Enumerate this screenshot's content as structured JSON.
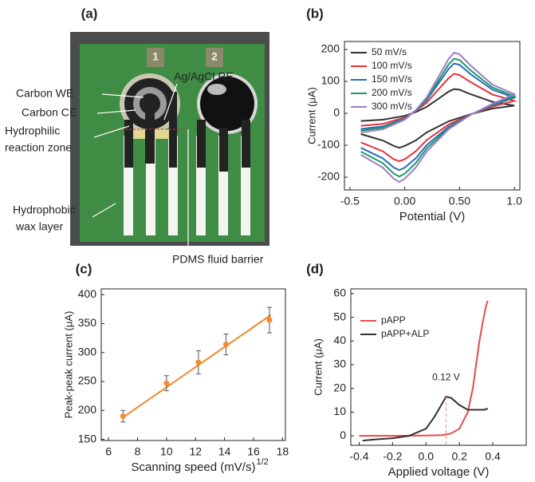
{
  "photo": {
    "panel_label": "(a)",
    "pad_numbers": [
      "1",
      "2"
    ],
    "labels": [
      "Carbon WE",
      "Carbon CE",
      "Ag/AgCl RE",
      "Hydrophilic",
      "reaction zone",
      "Hydrophobic",
      "wax layer",
      "PDMS fluid barrier"
    ]
  },
  "chart_data": [
    {
      "type": "line",
      "panel_label": "(b)",
      "xlabel": "Potential (V)",
      "ylabel": "Current (μA)",
      "x": [
        -0.4,
        -0.2,
        0,
        0.1,
        0.2,
        0.3,
        0.4,
        0.45,
        0.5,
        0.6,
        0.8,
        1.0,
        0.8,
        0.6,
        0.4,
        0.2,
        0.1,
        0,
        -0.05,
        -0.1,
        -0.2,
        -0.4
      ],
      "series": [
        {
          "name": "50 mV/s",
          "color": "#333333",
          "values": [
            -24,
            -20,
            -8,
            4,
            20,
            44,
            68,
            76,
            74,
            60,
            36,
            24,
            15,
            -3,
            -25,
            -60,
            -85,
            -102,
            -108,
            -102,
            -85,
            -65
          ]
        },
        {
          "name": "100 mV/s",
          "color": "#e8323c",
          "values": [
            -39,
            -33,
            -13,
            7,
            33,
            72,
            110,
            124,
            120,
            98,
            59,
            39,
            21,
            -4,
            -35,
            -84,
            -119,
            -144,
            -150,
            -144,
            -119,
            -91
          ]
        },
        {
          "name": "150 mV/s",
          "color": "#2a6db5",
          "values": [
            -49,
            -41,
            -16,
            8,
            41,
            90,
            139,
            156,
            152,
            123,
            74,
            49,
            25,
            -4,
            -42,
            -100,
            -141,
            -170,
            -178,
            -170,
            -141,
            -108
          ]
        },
        {
          "name": "200 mV/s",
          "color": "#1a9a6a",
          "values": [
            -54,
            -45,
            -18,
            9,
            45,
            99,
            153,
            171,
            167,
            135,
            81,
            54,
            28,
            -5,
            -46,
            -110,
            -156,
            -189,
            -198,
            -189,
            -156,
            -120
          ]
        },
        {
          "name": "300 mV/s",
          "color": "#a07cc8",
          "values": [
            -60,
            -50,
            -20,
            10,
            50,
            110,
            170,
            190,
            185,
            150,
            90,
            60,
            30,
            -5,
            -50,
            -120,
            -170,
            -205,
            -215,
            -205,
            -170,
            -130
          ]
        }
      ],
      "xlim": [
        -0.55,
        1.05
      ],
      "ylim": [
        -240,
        225
      ],
      "xticks": [
        -0.5,
        {
          "value": 0,
          "label": "0.00"
        },
        {
          "value": 0.5,
          "label": "0.50"
        },
        {
          "value": 1,
          "label": "1.0"
        }
      ],
      "yticks": [
        -200,
        -100,
        0,
        100,
        200
      ],
      "legend": "upper left"
    },
    {
      "type": "scatter",
      "panel_label": "(c)",
      "xlabel": "Scanning speed (mV/s)",
      "xlabel_sup": "1/2",
      "ylabel": "Peak-peak current (μA)",
      "x": [
        7,
        10,
        12.2,
        14.1,
        17.1
      ],
      "series": [
        {
          "color": "#f28a2f",
          "values": [
            190,
            247,
            283,
            314,
            356
          ],
          "yerr": [
            10,
            13,
            20,
            18,
            22
          ]
        }
      ],
      "fit_line": {
        "color": "#f28a2f",
        "x": [
          7,
          17.2
        ],
        "values": [
          188,
          365
        ]
      },
      "xlim": [
        5.5,
        18.2
      ],
      "ylim": [
        148,
        410
      ],
      "xticks": [
        6,
        8,
        10,
        12,
        14,
        16,
        18
      ],
      "yticks": [
        150,
        200,
        250,
        300,
        350,
        400
      ]
    },
    {
      "type": "line",
      "panel_label": "(d)",
      "xlabel": "Applied voltage (V)",
      "ylabel": "Current (μA)",
      "series": [
        {
          "name": "pAPP",
          "color": "#e84a4a",
          "x": [
            -0.4,
            -0.2,
            0,
            0.1,
            0.15,
            0.2,
            0.25,
            0.28,
            0.3,
            0.32,
            0.34,
            0.36,
            0.37
          ],
          "values": [
            0,
            0,
            0.1,
            0.3,
            1,
            3,
            10,
            20,
            30,
            40,
            48,
            55,
            57
          ]
        },
        {
          "name": "pAPP+ALP",
          "color": "#333333",
          "x": [
            -0.38,
            -0.3,
            -0.2,
            -0.1,
            0,
            0.05,
            0.1,
            0.12,
            0.15,
            0.2,
            0.25,
            0.3,
            0.35,
            0.37
          ],
          "values": [
            -2,
            -1.5,
            -1,
            0,
            3,
            8,
            14,
            16.5,
            16,
            13,
            11,
            11,
            11,
            11.5
          ]
        }
      ],
      "annotation": {
        "text": "0.12 V",
        "x": 0.12,
        "y": 16.5
      },
      "xlim": [
        -0.45,
        0.6
      ],
      "ylim": [
        -4,
        62
      ],
      "xticks": [
        -0.4,
        -0.2,
        {
          "value": 0,
          "label": "0.0"
        },
        0.2,
        0.4
      ],
      "yticks": [
        0,
        10,
        20,
        30,
        40,
        50,
        60
      ],
      "legend": "upper left"
    }
  ]
}
